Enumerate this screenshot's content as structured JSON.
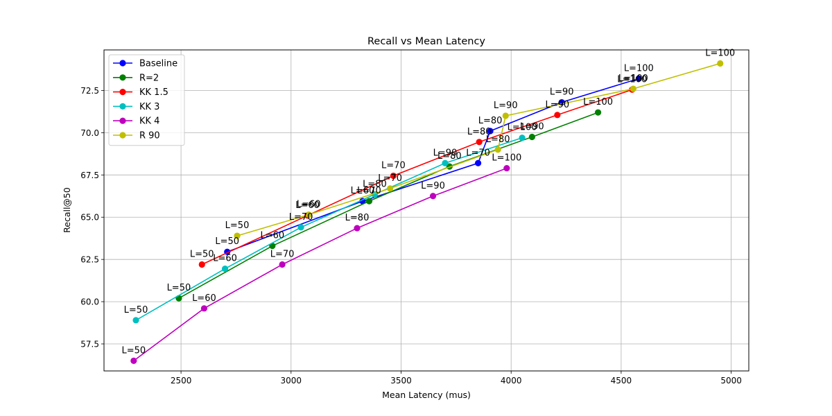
{
  "chart_data": {
    "type": "line",
    "title": "Recall vs Mean Latency",
    "xlabel": "Mean Latency (mus)",
    "ylabel": "Recall@50",
    "xlim": [
      2150,
      5080
    ],
    "ylim": [
      55.9,
      74.9
    ],
    "xticks": [
      2500,
      3000,
      3500,
      4000,
      4500,
      5000
    ],
    "xtick_labels": [
      "2500",
      "3000",
      "3500",
      "4000",
      "4500",
      "5000"
    ],
    "yticks": [
      57.5,
      60.0,
      62.5,
      65.0,
      67.5,
      70.0,
      72.5
    ],
    "ytick_labels": [
      "57.5",
      "60.0",
      "62.5",
      "65.0",
      "67.5",
      "70.0",
      "72.5"
    ],
    "grid": true,
    "legend_position": "top-left",
    "series": [
      {
        "name": "Baseline",
        "color": "#0000ff",
        "x": [
          2710,
          3325,
          3850,
          3905,
          4230,
          4580
        ],
        "y": [
          62.95,
          65.95,
          68.2,
          70.1,
          71.8,
          73.2
        ],
        "labels": [
          "L=50",
          "L=60",
          "L=70",
          "L=80",
          "L=90",
          "L=100"
        ]
      },
      {
        "name": "R=2",
        "color": "#008000",
        "x": [
          2490,
          2915,
          3355,
          3720,
          4095,
          4395
        ],
        "y": [
          60.2,
          63.3,
          65.95,
          68.0,
          69.75,
          71.2
        ],
        "labels": [
          "L=50",
          "L=60",
          "L=70",
          "L=80",
          "L=90",
          "L=100"
        ]
      },
      {
        "name": "KK 1.5",
        "color": "#ff0000",
        "x": [
          2595,
          3075,
          3465,
          3855,
          4210,
          4550
        ],
        "y": [
          62.2,
          65.1,
          67.45,
          69.45,
          71.05,
          72.55
        ],
        "labels": [
          "L=50",
          "L=60",
          "L=70",
          "L=80",
          "L=90",
          "L=100"
        ]
      },
      {
        "name": "KK 3",
        "color": "#00bfbf",
        "x": [
          2295,
          2700,
          3045,
          3380,
          3700,
          4050
        ],
        "y": [
          58.9,
          61.95,
          64.4,
          66.35,
          68.2,
          69.7
        ],
        "labels": [
          "L=50",
          "L=60",
          "L=70",
          "L=80",
          "L=90",
          "L=100"
        ]
      },
      {
        "name": "KK 4",
        "color": "#bf00bf",
        "x": [
          2285,
          2605,
          2960,
          3300,
          3645,
          3980
        ],
        "y": [
          56.5,
          59.6,
          62.2,
          64.35,
          66.25,
          67.9
        ],
        "labels": [
          "L=50",
          "L=60",
          "L=70",
          "L=80",
          "L=90",
          "L=100"
        ]
      },
      {
        "name": "R 90",
        "color": "#bfbf00",
        "x": [
          2755,
          3080,
          3450,
          3940,
          3975,
          4555,
          4950
        ],
        "y": [
          63.9,
          65.15,
          66.7,
          69.0,
          71.0,
          72.6,
          74.1
        ],
        "labels": [
          "L=50",
          "L=60",
          "L=70",
          "L=80",
          "L=90",
          "L=100",
          "L=100"
        ]
      }
    ]
  }
}
